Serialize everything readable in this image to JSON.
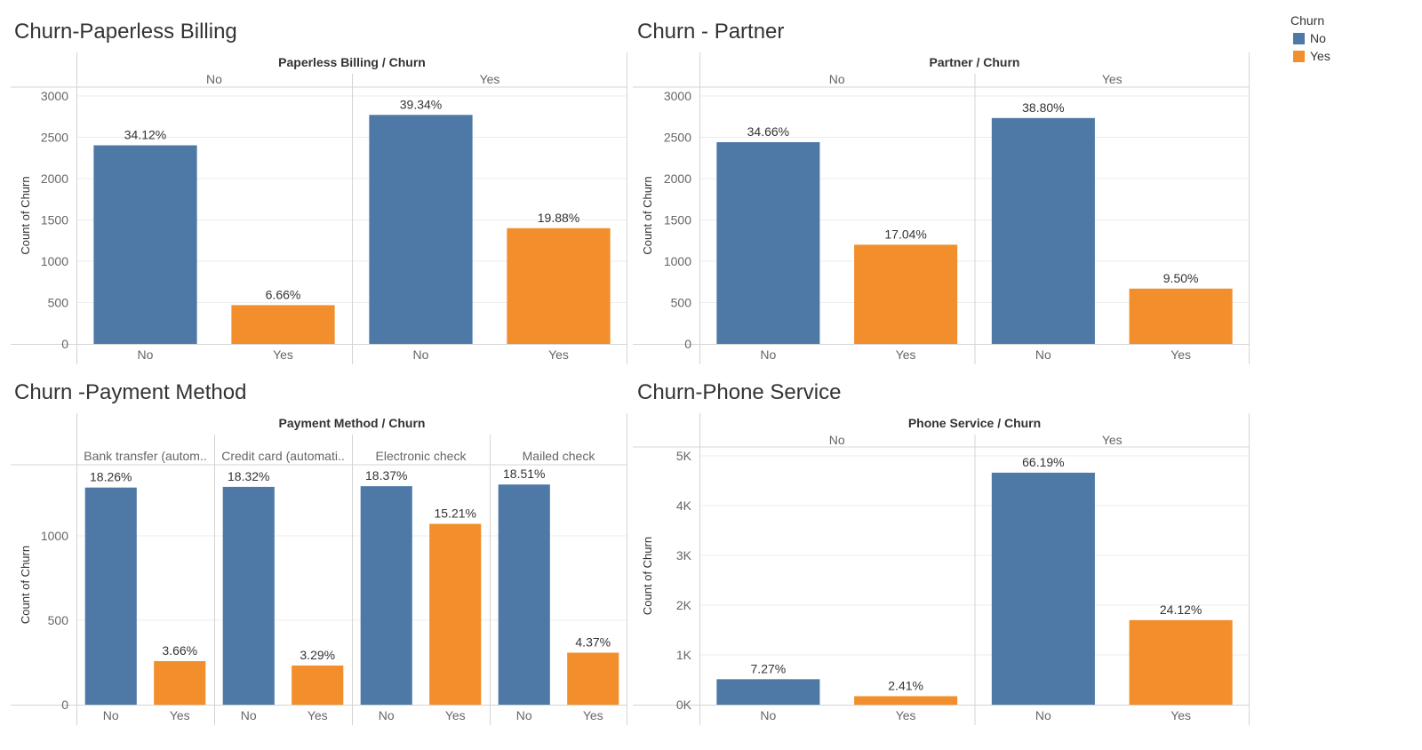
{
  "legend": {
    "title": "Churn",
    "items": [
      {
        "label": "No",
        "color": "#4e79a7"
      },
      {
        "label": "Yes",
        "color": "#f28e2b"
      }
    ]
  },
  "chart_data": [
    {
      "type": "bar",
      "title": "Churn-Paperless Billing",
      "header": "Paperless Billing  /  Churn",
      "ylabel": "Count of Churn",
      "ylim": [
        0,
        3000
      ],
      "yticks": [
        0,
        500,
        1000,
        1500,
        2000,
        2500,
        3000
      ],
      "ytick_labels": [
        "0",
        "500",
        "1000",
        "1500",
        "2000",
        "2500",
        "3000"
      ],
      "panels": [
        {
          "label": "No",
          "bars": [
            {
              "category": "No",
              "value": 2403,
              "label": "34.12%"
            },
            {
              "category": "Yes",
              "value": 469,
              "label": "6.66%"
            }
          ]
        },
        {
          "label": "Yes",
          "bars": [
            {
              "category": "No",
              "value": 2771,
              "label": "39.34%"
            },
            {
              "category": "Yes",
              "value": 1400,
              "label": "19.88%"
            }
          ]
        }
      ]
    },
    {
      "type": "bar",
      "title": "Churn - Partner",
      "header": "Partner  /  Churn",
      "ylabel": "Count of Churn",
      "ylim": [
        0,
        3000
      ],
      "yticks": [
        0,
        500,
        1000,
        1500,
        2000,
        2500,
        3000
      ],
      "ytick_labels": [
        "0",
        "500",
        "1000",
        "1500",
        "2000",
        "2500",
        "3000"
      ],
      "panels": [
        {
          "label": "No",
          "bars": [
            {
              "category": "No",
              "value": 2441,
              "label": "34.66%"
            },
            {
              "category": "Yes",
              "value": 1200,
              "label": "17.04%"
            }
          ]
        },
        {
          "label": "Yes",
          "bars": [
            {
              "category": "No",
              "value": 2733,
              "label": "38.80%"
            },
            {
              "category": "Yes",
              "value": 669,
              "label": "9.50%"
            }
          ]
        }
      ]
    },
    {
      "type": "bar",
      "title": "Churn -Payment Method",
      "header": "Payment Method  /  Churn",
      "ylabel": "Count of Churn",
      "ylim": [
        0,
        1400
      ],
      "yticks": [
        0,
        500,
        1000
      ],
      "ytick_labels": [
        "0",
        "500",
        "1000"
      ],
      "panels": [
        {
          "label": "Bank transfer (autom..",
          "bars": [
            {
              "category": "No",
              "value": 1286,
              "label": "18.26%"
            },
            {
              "category": "Yes",
              "value": 258,
              "label": "3.66%"
            }
          ]
        },
        {
          "label": "Credit card (automati..",
          "bars": [
            {
              "category": "No",
              "value": 1290,
              "label": "18.32%"
            },
            {
              "category": "Yes",
              "value": 232,
              "label": "3.29%"
            }
          ]
        },
        {
          "label": "Electronic check",
          "bars": [
            {
              "category": "No",
              "value": 1294,
              "label": "18.37%"
            },
            {
              "category": "Yes",
              "value": 1071,
              "label": "15.21%"
            }
          ]
        },
        {
          "label": "Mailed check",
          "bars": [
            {
              "category": "No",
              "value": 1304,
              "label": "18.51%"
            },
            {
              "category": "Yes",
              "value": 308,
              "label": "4.37%"
            }
          ]
        }
      ]
    },
    {
      "type": "bar",
      "title": "Churn-Phone Service",
      "header": "Phone Service  /  Churn",
      "ylabel": "Count of Churn",
      "ylim": [
        0,
        5000
      ],
      "yticks": [
        0,
        1000,
        2000,
        3000,
        4000,
        5000
      ],
      "ytick_labels": [
        "0K",
        "1K",
        "2K",
        "3K",
        "4K",
        "5K"
      ],
      "panels": [
        {
          "label": "No",
          "bars": [
            {
              "category": "No",
              "value": 512,
              "label": "7.27%"
            },
            {
              "category": "Yes",
              "value": 170,
              "label": "2.41%"
            }
          ]
        },
        {
          "label": "Yes",
          "bars": [
            {
              "category": "No",
              "value": 4662,
              "label": "66.19%"
            },
            {
              "category": "Yes",
              "value": 1699,
              "label": "24.12%"
            }
          ]
        }
      ]
    }
  ]
}
